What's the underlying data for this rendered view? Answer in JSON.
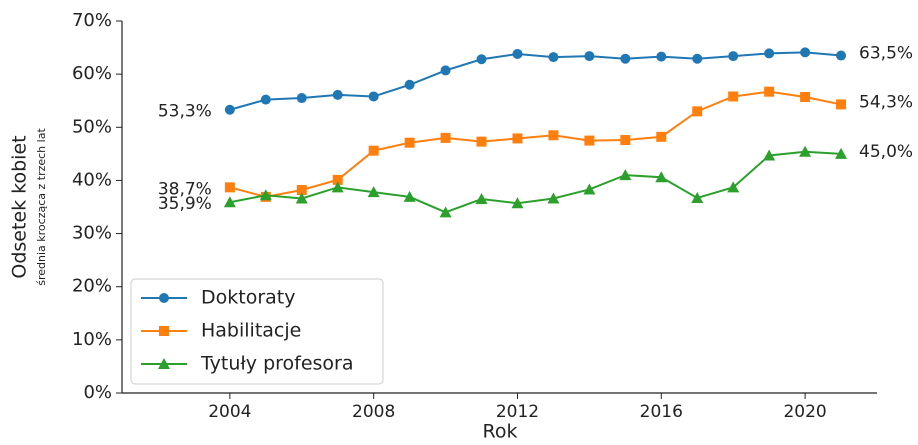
{
  "chart_data": {
    "type": "line",
    "ylabel": "Odsetek kobiet",
    "ylabel_sub": "średnia krocząca z trzech lat",
    "xlabel": "Rok",
    "x": [
      2004,
      2005,
      2006,
      2007,
      2008,
      2009,
      2010,
      2011,
      2012,
      2013,
      2014,
      2015,
      2016,
      2017,
      2018,
      2019,
      2020,
      2021
    ],
    "series": [
      {
        "name": "Doktoraty",
        "color": "#1f77b4",
        "marker": "circle",
        "values": [
          53.3,
          55.2,
          55.5,
          56.1,
          55.8,
          58.0,
          60.7,
          62.8,
          63.8,
          63.2,
          63.4,
          62.9,
          63.3,
          62.9,
          63.4,
          63.9,
          64.1,
          63.5
        ],
        "value_labels": [
          "53,3%",
          null,
          null,
          null,
          null,
          null,
          null,
          null,
          null,
          null,
          null,
          null,
          null,
          null,
          null,
          null,
          null,
          "63,5%"
        ]
      },
      {
        "name": "Habilitacje",
        "color": "#ff7f0e",
        "marker": "square",
        "values": [
          38.7,
          36.9,
          38.2,
          40.1,
          45.6,
          47.1,
          48.0,
          47.3,
          47.9,
          48.5,
          47.5,
          47.6,
          48.2,
          53.0,
          55.8,
          56.7,
          55.7,
          54.3
        ],
        "value_labels": [
          "38,7%",
          null,
          null,
          null,
          null,
          null,
          null,
          null,
          null,
          null,
          null,
          null,
          null,
          null,
          null,
          null,
          null,
          "54,3%"
        ]
      },
      {
        "name": "Tytuły profesora",
        "color": "#2ca02c",
        "marker": "triangle",
        "values": [
          35.9,
          37.2,
          36.6,
          38.7,
          37.8,
          36.9,
          34.0,
          36.5,
          35.7,
          36.6,
          38.3,
          41.0,
          40.6,
          36.7,
          38.7,
          44.7,
          45.4,
          45.0
        ],
        "value_labels": [
          "35,9%",
          null,
          null,
          null,
          null,
          null,
          null,
          null,
          null,
          null,
          null,
          null,
          null,
          null,
          null,
          null,
          null,
          "45,0%"
        ]
      }
    ],
    "xlim": [
      2001,
      2022
    ],
    "xticks": [
      2004,
      2008,
      2012,
      2016,
      2020
    ],
    "ylim": [
      0,
      70
    ],
    "yticks": [
      {
        "value": 0,
        "label": "0%"
      },
      {
        "value": 10,
        "label": "10%"
      },
      {
        "value": 20,
        "label": "20%"
      },
      {
        "value": 30,
        "label": "30%"
      },
      {
        "value": 40,
        "label": "40%"
      },
      {
        "value": 50,
        "label": "50%"
      },
      {
        "value": 60,
        "label": "60%"
      },
      {
        "value": 70,
        "label": "70%"
      }
    ],
    "legend": "lower-left"
  }
}
